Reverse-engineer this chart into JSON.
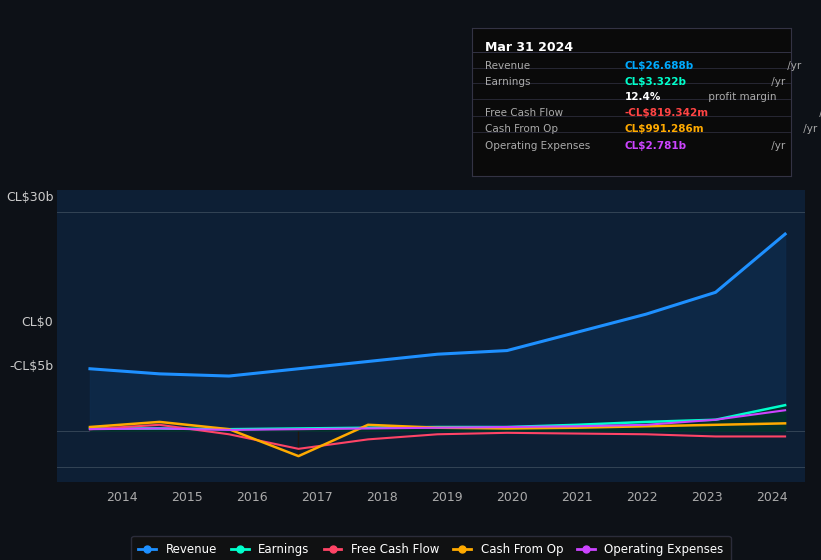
{
  "background_color": "#0d1117",
  "plot_bg_color": "#0d1f35",
  "title_box": {
    "date": "Mar 31 2024",
    "rows": [
      {
        "label": "Revenue",
        "value": "CL$26.688b",
        "suffix": " /yr",
        "value_color": "#00aaff"
      },
      {
        "label": "Earnings",
        "value": "CL$3.322b",
        "suffix": " /yr",
        "value_color": "#00ffcc"
      },
      {
        "label": "",
        "value": "12.4%",
        "suffix": " profit margin",
        "value_color": "#ffffff"
      },
      {
        "label": "Free Cash Flow",
        "value": "-CL$819.342m",
        "suffix": " /yr",
        "value_color": "#ff4444"
      },
      {
        "label": "Cash From Op",
        "value": "CL$991.286m",
        "suffix": " /yr",
        "value_color": "#ffaa00"
      },
      {
        "label": "Operating Expenses",
        "value": "CL$2.781b",
        "suffix": " /yr",
        "value_color": "#cc44ff"
      }
    ]
  },
  "x_labels": [
    "2014",
    "2015",
    "2016",
    "2017",
    "2018",
    "2019",
    "2020",
    "2021",
    "2022",
    "2023",
    "2024"
  ],
  "y_tick_vals": [
    30,
    0,
    -5
  ],
  "y_tick_labels": [
    "CL$30b",
    "CL$0",
    "-CL$5b"
  ],
  "ylim": [
    -7,
    33
  ],
  "series": {
    "revenue": {
      "color": "#1e90ff",
      "label": "Revenue",
      "values": [
        8.5,
        7.8,
        7.5,
        8.5,
        9.5,
        10.5,
        11.0,
        13.5,
        16.0,
        19.0,
        27.0
      ]
    },
    "earnings": {
      "color": "#00ffcc",
      "label": "Earnings",
      "values": [
        0.3,
        0.3,
        0.2,
        0.3,
        0.4,
        0.5,
        0.5,
        0.8,
        1.2,
        1.5,
        3.5
      ]
    },
    "free_cash_flow": {
      "color": "#ff4466",
      "label": "Free Cash Flow",
      "values": [
        0.2,
        0.8,
        -0.5,
        -2.5,
        -1.2,
        -0.5,
        -0.3,
        -0.4,
        -0.5,
        -0.8,
        -0.8
      ]
    },
    "cash_from_op": {
      "color": "#ffaa00",
      "label": "Cash From Op",
      "values": [
        0.5,
        1.2,
        0.2,
        -3.5,
        0.8,
        0.4,
        0.3,
        0.4,
        0.6,
        0.8,
        1.0
      ]
    },
    "operating_expenses": {
      "color": "#cc44ff",
      "label": "Operating Expenses",
      "values": [
        0.2,
        0.3,
        0.1,
        0.2,
        0.3,
        0.4,
        0.5,
        0.6,
        0.8,
        1.5,
        2.8
      ]
    }
  }
}
